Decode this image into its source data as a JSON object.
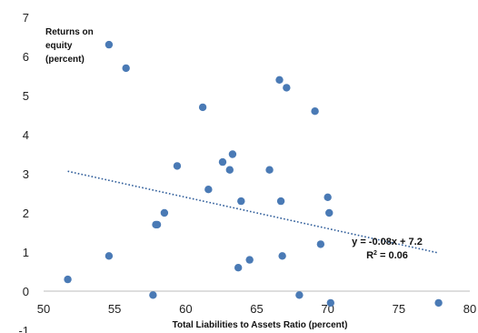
{
  "chart_data": {
    "type": "scatter",
    "title": "",
    "ylabel_lines": [
      "Returns on",
      "equity",
      "(percent)"
    ],
    "xlabel": "Total Liabilities to Assets Ratio (percent)",
    "xlim": [
      50,
      80
    ],
    "ylim": [
      -1,
      7
    ],
    "xticks": [
      50,
      55,
      60,
      65,
      70,
      75,
      80
    ],
    "yticks": [
      -1,
      0,
      1,
      2,
      3,
      4,
      5,
      6,
      7
    ],
    "grid": false,
    "legend": "none",
    "point_color": "#4a7ab5",
    "trendline_color": "#2f5d9a",
    "points": [
      {
        "x": 51.7,
        "y": 0.3
      },
      {
        "x": 54.6,
        "y": 6.3
      },
      {
        "x": 54.6,
        "y": 0.9
      },
      {
        "x": 55.8,
        "y": 5.7
      },
      {
        "x": 57.7,
        "y": -0.1
      },
      {
        "x": 57.9,
        "y": 1.7
      },
      {
        "x": 58.0,
        "y": 1.7
      },
      {
        "x": 58.5,
        "y": 2.0
      },
      {
        "x": 59.4,
        "y": 3.2
      },
      {
        "x": 61.2,
        "y": 4.7
      },
      {
        "x": 61.6,
        "y": 2.6
      },
      {
        "x": 62.6,
        "y": 3.3
      },
      {
        "x": 63.1,
        "y": 3.1
      },
      {
        "x": 63.3,
        "y": 3.5
      },
      {
        "x": 63.7,
        "y": 0.6
      },
      {
        "x": 63.9,
        "y": 2.3
      },
      {
        "x": 64.5,
        "y": 0.8
      },
      {
        "x": 65.9,
        "y": 3.1
      },
      {
        "x": 66.6,
        "y": 5.4
      },
      {
        "x": 66.7,
        "y": 2.3
      },
      {
        "x": 66.8,
        "y": 0.9
      },
      {
        "x": 67.1,
        "y": 5.2
      },
      {
        "x": 68.0,
        "y": -0.1
      },
      {
        "x": 69.1,
        "y": 4.6
      },
      {
        "x": 69.5,
        "y": 1.2
      },
      {
        "x": 70.0,
        "y": 2.4
      },
      {
        "x": 70.1,
        "y": 2.0
      },
      {
        "x": 70.2,
        "y": -0.3
      },
      {
        "x": 77.8,
        "y": -0.3
      }
    ],
    "trendline": {
      "slope": -0.08,
      "intercept": 7.2,
      "x_range": [
        51.7,
        77.8
      ],
      "equation": "y = -0.08x + 7.2",
      "r2_prefix": "R",
      "r2_sup": "2",
      "r2_suffix": " = 0.06"
    }
  }
}
